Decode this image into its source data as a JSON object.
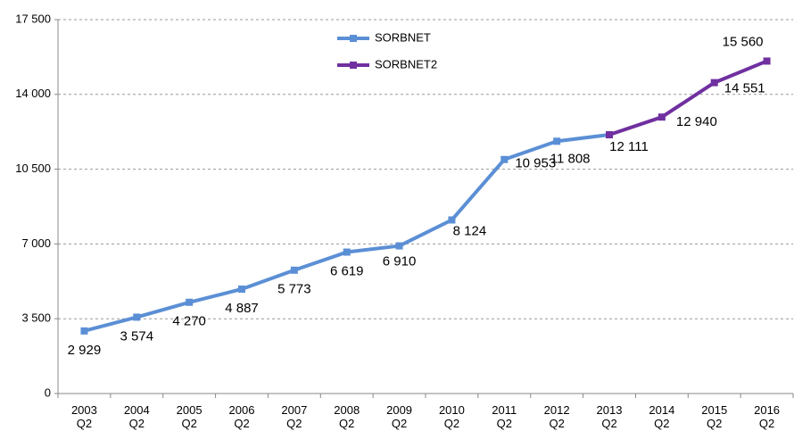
{
  "chart_data": {
    "type": "line",
    "categories": [
      "2003 Q2",
      "2004 Q2",
      "2005 Q2",
      "2006 Q2",
      "2007 Q2",
      "2008 Q2",
      "2009 Q2",
      "2010 Q2",
      "2011 Q2",
      "2012 Q2",
      "2013 Q2",
      "2014 Q2",
      "2015 Q2",
      "2016 Q2"
    ],
    "series": [
      {
        "name": "SORBNET",
        "color": "#5b8fd5",
        "values": [
          2929,
          3574,
          4270,
          4887,
          5773,
          6619,
          6910,
          8124,
          10953,
          11808,
          12111,
          null,
          null,
          null
        ],
        "value_labels": [
          "2 929",
          "3 574",
          "4 270",
          "4 887",
          "5 773",
          "6 619",
          "6 910",
          "8 124",
          "10 953",
          "11 808",
          "12 111",
          null,
          null,
          null
        ]
      },
      {
        "name": "SORBNET2",
        "color": "#7030a0",
        "values": [
          null,
          null,
          null,
          null,
          null,
          null,
          null,
          null,
          null,
          null,
          12111,
          12940,
          14551,
          15560
        ],
        "value_labels": [
          null,
          null,
          null,
          null,
          null,
          null,
          null,
          null,
          null,
          null,
          null,
          "12 940",
          "14 551",
          "15 560"
        ]
      }
    ],
    "ylim": [
      0,
      17500
    ],
    "yticks": [
      0,
      {
        "value": 3500,
        "label": "3 500"
      },
      {
        "value": 7000,
        "label": "7 000"
      },
      {
        "value": 10500,
        "label": "10 500"
      },
      {
        "value": 14000,
        "label": "14 000"
      },
      {
        "value": 17500,
        "label": "17 500"
      }
    ],
    "grid": true
  }
}
